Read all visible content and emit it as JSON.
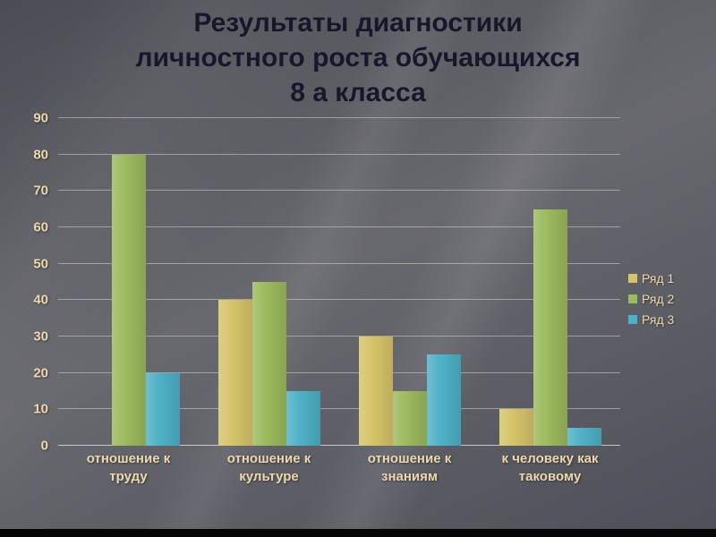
{
  "slide": {
    "title_lines": [
      "Результаты диагностики",
      "личностного роста обучающихся",
      "8 а класса"
    ]
  },
  "colors": {
    "series1": "#d6c46a",
    "series2": "#9cba5e",
    "series3": "#4fb1c7",
    "axis_text": "#ecd9ab",
    "title_text": "#17172b"
  },
  "chart_data": {
    "type": "bar",
    "title": "Результаты диагностики личностного роста обучающихся 8 а класса",
    "categories": [
      "отношение к труду",
      "отношение к культуре",
      "отношение к знаниям",
      "к человеку как таковому"
    ],
    "series": [
      {
        "name": "Ряд 1",
        "color": "#d6c46a",
        "values": [
          0,
          40,
          30,
          10
        ]
      },
      {
        "name": "Ряд 2",
        "color": "#9cba5e",
        "values": [
          80,
          45,
          15,
          65
        ]
      },
      {
        "name": "Ряд 3",
        "color": "#4fb1c7",
        "values": [
          20,
          15,
          25,
          5
        ]
      }
    ],
    "xlabel": "",
    "ylabel": "",
    "ylim": [
      0,
      90
    ],
    "ytick_step": 10,
    "yticks": [
      0,
      10,
      20,
      30,
      40,
      50,
      60,
      70,
      80,
      90
    ],
    "grid": true,
    "legend_position": "right"
  }
}
